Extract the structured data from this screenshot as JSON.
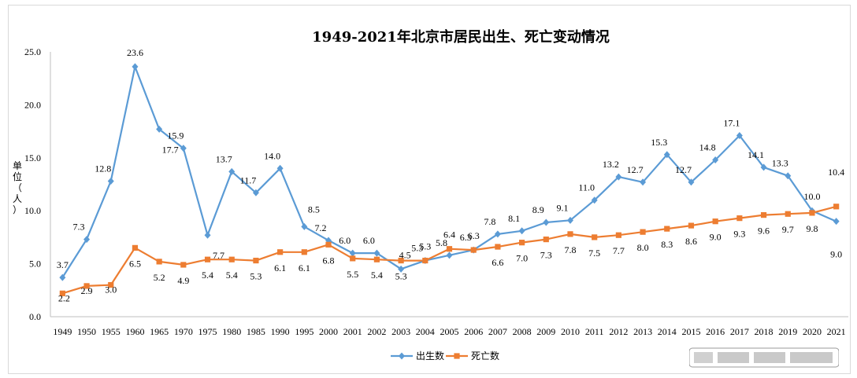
{
  "chart_data": {
    "type": "line",
    "title": "1949-2021年北京市居民出生、死亡变动情况",
    "ylabel": "单位（人）",
    "ylim": [
      0,
      25
    ],
    "yticks": [
      "0.0",
      "5.0",
      "10.0",
      "15.0",
      "20.0",
      "25.0"
    ],
    "grid": false,
    "legend": "bottom-center",
    "categories": [
      "1949",
      "1950",
      "1955",
      "1960",
      "1965",
      "1970",
      "1975",
      "1980",
      "1985",
      "1990",
      "1995",
      "2000",
      "2001",
      "2002",
      "2003",
      "2004",
      "2005",
      "2006",
      "2007",
      "2008",
      "2009",
      "2010",
      "2011",
      "2012",
      "2013",
      "2014",
      "2015",
      "2016",
      "2017",
      "2018",
      "2019",
      "2020",
      "2021"
    ],
    "series": [
      {
        "name": "出生数",
        "color": "#5b9bd5",
        "marker": "diamond",
        "values": [
          3.7,
          7.3,
          12.8,
          23.6,
          17.7,
          15.9,
          7.7,
          13.7,
          11.7,
          14.0,
          8.5,
          7.2,
          6.0,
          6.0,
          4.5,
          5.3,
          5.8,
          6.3,
          7.8,
          8.1,
          8.9,
          9.1,
          11.0,
          13.2,
          12.7,
          15.3,
          12.7,
          14.8,
          17.1,
          14.1,
          13.3,
          10.0,
          9.0
        ],
        "labels": [
          "3.7",
          "7.3",
          "12.8",
          "23.6",
          "17.7",
          "15.9",
          "7.7",
          "13.7",
          "11.7",
          "14.0",
          "8.5",
          "7.2",
          "6.0",
          "6.0",
          "4.5",
          "5.3",
          "5.8",
          "6.3",
          "7.8",
          "8.1",
          "8.9",
          "9.1",
          "11.0",
          "13.2",
          "12.7",
          "15.3",
          "12.7",
          "14.8",
          "17.1",
          "14.1",
          "13.3",
          "10.0",
          "9.0"
        ]
      },
      {
        "name": "死亡数",
        "color": "#ed7d31",
        "marker": "square",
        "values": [
          2.2,
          2.9,
          3.0,
          6.5,
          5.2,
          4.9,
          5.4,
          5.4,
          5.3,
          6.1,
          6.1,
          6.8,
          5.5,
          5.4,
          5.3,
          5.3,
          6.4,
          6.3,
          6.6,
          7.0,
          7.3,
          7.8,
          7.5,
          7.7,
          8.0,
          8.3,
          8.6,
          9.0,
          9.3,
          9.6,
          9.7,
          9.8,
          10.4
        ],
        "labels": [
          "2.2",
          "2.9",
          "3.0",
          "6.5",
          "5.2",
          "4.9",
          "5.4",
          "5.4",
          "5.3",
          "6.1",
          "6.1",
          "6.8",
          "5.5",
          "5.4",
          "5.3",
          "5.3",
          "6.4",
          "6.3",
          "6.6",
          "7.0",
          "7.3",
          "7.8",
          "7.5",
          "7.7",
          "8.0",
          "8.3",
          "8.6",
          "9.0",
          "9.3",
          "9.6",
          "9.7",
          "9.8",
          "10.4"
        ]
      }
    ]
  }
}
